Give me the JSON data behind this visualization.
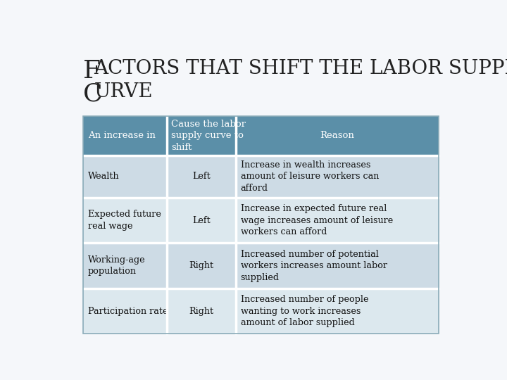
{
  "title_line1": "ACTORS THAT SHIFT THE LABOR SUPPLY",
  "title_line1_cap": "F",
  "title_line2": "URVE",
  "title_line2_cap": "C",
  "title_fontsize_cap": 26,
  "title_fontsize_small": 20,
  "page_bg": "#f5f7fa",
  "header_color": "#5b8fa8",
  "header_text_color": "#ffffff",
  "row_color_odd": "#cddbe5",
  "row_color_even": "#dce8ee",
  "col_headers": [
    "An increase in",
    "Cause the labor\nsupply curve to\nshift",
    "Reason"
  ],
  "rows": [
    {
      "col1": "Wealth",
      "col2": "Left",
      "col3": "Increase in wealth increases\namount of leisure workers can\nafford"
    },
    {
      "col1": "Expected future\nreal wage",
      "col2": "Left",
      "col3": "Increase in expected future real\nwage increases amount of leisure\nworkers can afford"
    },
    {
      "col1": "Working-age\npopulation",
      "col2": "Right",
      "col3": "Increased number of potential\nworkers increases amount labor\nsupplied"
    },
    {
      "col1": "Participation rate",
      "col2": "Right",
      "col3": "Increased number of people\nwanting to work increases\namount of labor supplied"
    }
  ]
}
